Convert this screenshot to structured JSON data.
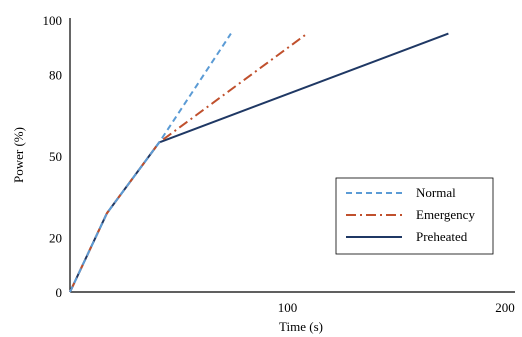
{
  "chart_data": {
    "type": "line",
    "xlabel": "Time (s)",
    "ylabel": "Power (%)",
    "xlim": [
      0,
      200
    ],
    "ylim": [
      0,
      100
    ],
    "x_ticks": [
      100,
      200
    ],
    "y_ticks": [
      0,
      20,
      50,
      80,
      100
    ],
    "grid": false,
    "legend_position": "bottom-right",
    "series": [
      {
        "name": "Normal",
        "style": "dashed",
        "color": "#5b9bd5",
        "points": [
          [
            0,
            0
          ],
          [
            17,
            29
          ],
          [
            41,
            55
          ],
          [
            74,
            95
          ]
        ]
      },
      {
        "name": "Emergency",
        "style": "dashdot",
        "color": "#c0502d",
        "points": [
          [
            0,
            0
          ],
          [
            17,
            29
          ],
          [
            41,
            55
          ],
          [
            109,
            95
          ]
        ]
      },
      {
        "name": "Preheated",
        "style": "solid",
        "color": "#1f3864",
        "points": [
          [
            0,
            0
          ],
          [
            17,
            29
          ],
          [
            41,
            55
          ],
          [
            174,
            95
          ]
        ]
      }
    ]
  }
}
